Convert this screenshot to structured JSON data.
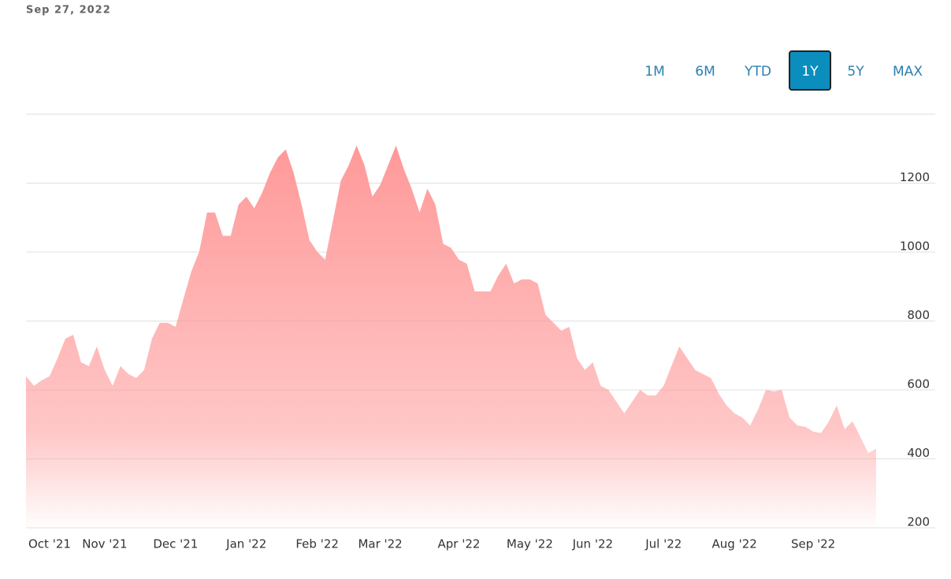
{
  "chart_data": {
    "type": "area",
    "date": "Sep 27, 2022",
    "range_options": [
      "1M",
      "6M",
      "YTD",
      "1Y",
      "5Y",
      "MAX"
    ],
    "selected_range": "1Y",
    "color": "#ff9999",
    "categories": [
      null,
      null,
      null,
      "Oct '21",
      null,
      null,
      null,
      null,
      null,
      null,
      "Nov '21",
      null,
      null,
      null,
      null,
      null,
      null,
      null,
      null,
      "Dec '21",
      null,
      null,
      null,
      null,
      null,
      null,
      null,
      null,
      "Jan '22",
      null,
      null,
      null,
      null,
      null,
      null,
      null,
      null,
      "Feb '22",
      null,
      null,
      null,
      null,
      null,
      null,
      null,
      "Mar '22",
      null,
      null,
      null,
      null,
      null,
      null,
      null,
      null,
      null,
      "Apr '22",
      null,
      null,
      null,
      null,
      null,
      null,
      null,
      null,
      "May '22",
      null,
      null,
      null,
      null,
      null,
      null,
      null,
      "Jun '22",
      null,
      null,
      null,
      null,
      null,
      null,
      null,
      null,
      "Jul '22",
      null,
      null,
      null,
      null,
      null,
      null,
      null,
      null,
      "Aug '22",
      null,
      null,
      null,
      null,
      null,
      null,
      null,
      null,
      null,
      "Sep '22",
      null,
      null,
      null,
      null,
      null,
      null,
      null,
      null
    ],
    "values": [
      640,
      612,
      628,
      640,
      692,
      749,
      760,
      680,
      669,
      726,
      658,
      612,
      669,
      646,
      635,
      658,
      749,
      795,
      795,
      783,
      864,
      944,
      1001,
      1115,
      1115,
      1047,
      1047,
      1138,
      1161,
      1127,
      1172,
      1230,
      1275,
      1298,
      1230,
      1138,
      1035,
      1001,
      978,
      1092,
      1207,
      1252,
      1309,
      1252,
      1161,
      1195,
      1252,
      1309,
      1241,
      1184,
      1115,
      1184,
      1138,
      1024,
      1012,
      978,
      966,
      886,
      886,
      886,
      932,
      966,
      909,
      921,
      921,
      909,
      818,
      795,
      772,
      783,
      692,
      658,
      680,
      612,
      600,
      566,
      532,
      566,
      600,
      584,
      584,
      612,
      669,
      726,
      692,
      658,
      646,
      635,
      589,
      555,
      532,
      520,
      497,
      543,
      600,
      596,
      600,
      520,
      497,
      493,
      479,
      475,
      509,
      555,
      486,
      509,
      463,
      417,
      429
    ],
    "ylim": [
      200,
      1400
    ],
    "yticks": [
      200,
      400,
      600,
      800,
      1000,
      1200
    ],
    "grid": true
  }
}
